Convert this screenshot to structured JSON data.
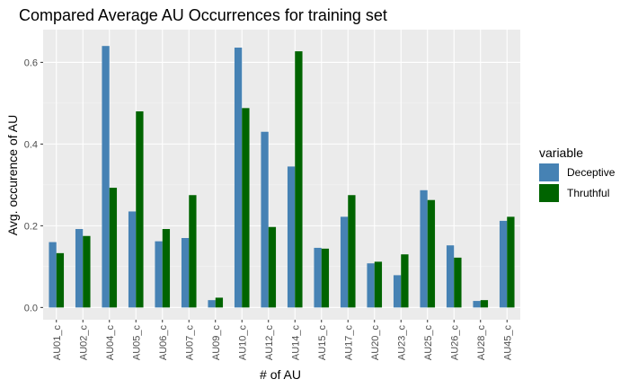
{
  "chart_data": {
    "type": "bar",
    "title": "Compared Average AU Occurrences for training set",
    "xlabel": "# of AU",
    "ylabel": "Avg. occurence of AU",
    "categories": [
      "AU01_c",
      "AU02_c",
      "AU04_c",
      "AU05_c",
      "AU06_c",
      "AU07_c",
      "AU09_c",
      "AU10_c",
      "AU12_c",
      "AU14_c",
      "AU15_c",
      "AU17_c",
      "AU20_c",
      "AU23_c",
      "AU25_c",
      "AU26_c",
      "AU28_c",
      "AU45_c"
    ],
    "series": [
      {
        "name": "Deceptive",
        "color": "#4682b4",
        "values": [
          0.16,
          0.192,
          0.64,
          0.235,
          0.162,
          0.17,
          0.018,
          0.636,
          0.43,
          0.345,
          0.146,
          0.222,
          0.108,
          0.079,
          0.287,
          0.152,
          0.016,
          0.212
        ]
      },
      {
        "name": "Thruthful",
        "color": "#006400",
        "values": [
          0.133,
          0.175,
          0.293,
          0.48,
          0.192,
          0.275,
          0.024,
          0.488,
          0.197,
          0.627,
          0.144,
          0.275,
          0.112,
          0.13,
          0.263,
          0.122,
          0.018,
          0.222
        ]
      }
    ],
    "ylim": [
      -0.03,
      0.68
    ],
    "yticks": [
      0.0,
      0.2,
      0.4,
      0.6
    ],
    "ytick_labels": [
      "0.0",
      "0.2",
      "0.4",
      "0.6"
    ],
    "legend_title": "variable",
    "legend_position": "right",
    "grid": true,
    "panel_color": "#ebebeb"
  }
}
